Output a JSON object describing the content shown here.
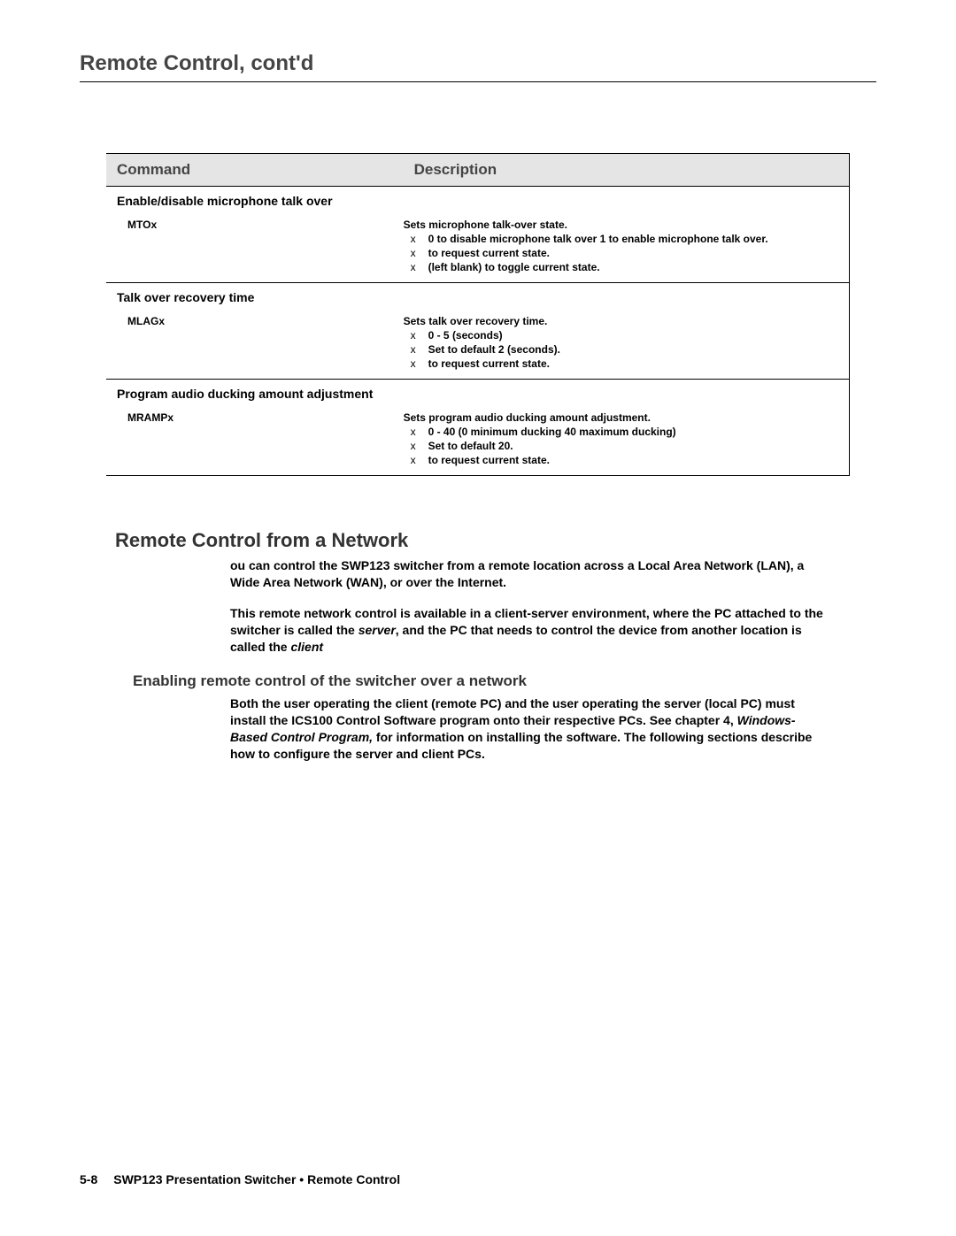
{
  "page_title": "Remote Control, cont'd",
  "table": {
    "header": {
      "command": "Command",
      "description": "Description"
    },
    "sections": [
      {
        "title": "Enable/disable microphone talk over",
        "cmd": "MTOx",
        "desc": "Sets microphone talk-over state.",
        "bullets": [
          {
            "mark": "x",
            "text": "0 to disable microphone talk over 1 to enable microphone talk over."
          },
          {
            "mark": "x",
            "text": "to request current state."
          },
          {
            "mark": "x",
            "text": "(left blank) to toggle current state."
          }
        ]
      },
      {
        "title": "Talk over recovery time",
        "cmd": "MLAGx",
        "desc": "Sets talk over recovery time.",
        "bullets": [
          {
            "mark": "x",
            "text": "0 - 5 (seconds)"
          },
          {
            "mark": "x",
            "text": "Set to default 2 (seconds)."
          },
          {
            "mark": "x",
            "text": "to request current state."
          }
        ]
      },
      {
        "title": "Program audio ducking amount adjustment",
        "cmd": "MRAMPx",
        "desc": "Sets program audio ducking amount adjustment.",
        "bullets": [
          {
            "mark": "x",
            "text": "0 - 40 (0   minimum ducking 40   maximum ducking)"
          },
          {
            "mark": "x",
            "text": "Set to default 20."
          },
          {
            "mark": "x",
            "text": "to request current state."
          }
        ]
      }
    ]
  },
  "h2": "Remote Control from a Network",
  "para1_a": "ou can control the SWP123 switcher from a remote location across a Local Area Network (LAN), a Wide Area Network (WAN), or over the Internet.",
  "para2_a": "This remote network control is available in a client-server environment, where the PC attached to the switcher is called the ",
  "para2_server": "server",
  "para2_b": ", and the PC that needs to control the device from another location is called the ",
  "para2_client": "client",
  "h3": "Enabling remote control of the switcher over a network",
  "para3_a": "Both the user operating the client (remote PC) and the user operating the server (local PC) must install the ICS100 Control Software program onto their respective PCs.  See chapter 4, ",
  "para3_ch": "Windows-Based Control Program,",
  "para3_b": " for information on installing the software.  The following sections describe how to configure the server and client PCs.",
  "footer": {
    "pagenum": "5-8",
    "text": "SWP123 Presentation Switcher • Remote Control"
  }
}
